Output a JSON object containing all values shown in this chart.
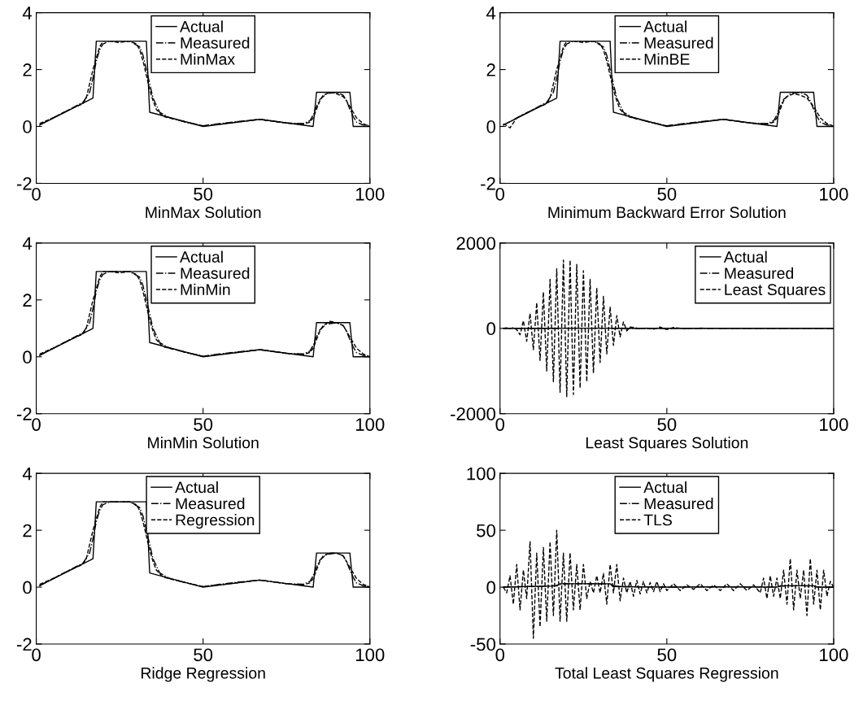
{
  "chart_data": [
    {
      "type": "line",
      "xlabel": "MinMax Solution",
      "xlim": [
        0,
        100
      ],
      "xticks": [
        0,
        50,
        100
      ],
      "ylim": [
        -2,
        4
      ],
      "yticks": [
        -2,
        0,
        2,
        4
      ],
      "legend": "top",
      "grid": false,
      "series": [
        {
          "name": "Actual",
          "color": "#000000",
          "line_style": "solid",
          "x": [
            1,
            17,
            18,
            33,
            34,
            50,
            67,
            83,
            84,
            94,
            95,
            100
          ],
          "values": [
            0.05,
            1,
            3,
            3,
            0.5,
            0,
            0.25,
            0,
            1.2,
            1.2,
            0,
            0
          ]
        },
        {
          "name": "Measured",
          "color": "#000000",
          "line_style": "dashdot",
          "x": [
            1,
            5,
            10,
            14,
            16,
            17,
            18,
            19,
            20,
            22,
            25,
            28,
            31,
            32,
            33,
            34,
            35,
            37,
            40,
            45,
            50,
            55,
            60,
            67,
            75,
            80,
            82,
            83,
            84,
            85,
            87,
            90,
            92,
            93,
            94,
            95,
            96,
            98,
            100
          ],
          "values": [
            0.05,
            0.3,
            0.6,
            0.85,
            1.2,
            1.7,
            2.3,
            2.7,
            2.9,
            3.0,
            3.0,
            3.0,
            2.8,
            2.5,
            2.0,
            1.5,
            1.0,
            0.5,
            0.3,
            0.15,
            0.02,
            0.1,
            0.17,
            0.25,
            0.12,
            0.1,
            0.2,
            0.4,
            0.7,
            0.95,
            1.15,
            1.2,
            1.1,
            0.9,
            0.6,
            0.35,
            0.15,
            0.05,
            0.03
          ]
        },
        {
          "name": "MinMax",
          "color": "#000000",
          "line_style": "dashed",
          "x": [
            1,
            5,
            10,
            14,
            15,
            16,
            17,
            18,
            19,
            20,
            22,
            25,
            28,
            30,
            31,
            32,
            33,
            34,
            35,
            36,
            38,
            40,
            45,
            50,
            60,
            67,
            75,
            80,
            82,
            83,
            84,
            85,
            86,
            88,
            90,
            92,
            93,
            94,
            95,
            96,
            98,
            100
          ],
          "values": [
            0.1,
            0.3,
            0.6,
            0.8,
            1.0,
            1.5,
            2.0,
            2.4,
            2.8,
            3.0,
            3.0,
            2.95,
            3.0,
            2.9,
            2.7,
            2.3,
            1.8,
            1.3,
            0.9,
            0.6,
            0.35,
            0.3,
            0.15,
            0.02,
            0.15,
            0.25,
            0.12,
            0.08,
            0.15,
            0.3,
            0.6,
            0.9,
            1.1,
            1.2,
            1.15,
            1.05,
            0.9,
            0.7,
            0.5,
            0.3,
            0.1,
            0.0
          ]
        }
      ]
    },
    {
      "type": "line",
      "xlabel": "Minimum Backward Error Solution",
      "xlim": [
        0,
        100
      ],
      "xticks": [
        0,
        50,
        100
      ],
      "ylim": [
        -2,
        4
      ],
      "yticks": [
        -2,
        0,
        2,
        4
      ],
      "legend": "top",
      "grid": false,
      "series": [
        {
          "name": "Actual",
          "color": "#000000",
          "line_style": "solid",
          "x": [
            1,
            17,
            18,
            33,
            34,
            50,
            67,
            83,
            84,
            94,
            95,
            100
          ],
          "values": [
            0.05,
            1,
            3,
            3,
            0.5,
            0,
            0.25,
            0,
            1.2,
            1.2,
            0,
            0
          ]
        },
        {
          "name": "Measured",
          "color": "#000000",
          "line_style": "dashdot",
          "x": [
            1,
            5,
            10,
            14,
            16,
            17,
            18,
            19,
            20,
            22,
            25,
            28,
            31,
            32,
            33,
            34,
            35,
            37,
            40,
            45,
            50,
            55,
            60,
            67,
            75,
            80,
            82,
            83,
            84,
            85,
            87,
            90,
            92,
            93,
            94,
            95,
            96,
            98,
            100
          ],
          "values": [
            0.05,
            0.3,
            0.6,
            0.85,
            1.2,
            1.7,
            2.3,
            2.7,
            2.9,
            3.0,
            3.0,
            3.0,
            2.8,
            2.5,
            2.0,
            1.5,
            1.0,
            0.5,
            0.3,
            0.15,
            0.02,
            0.1,
            0.17,
            0.25,
            0.12,
            0.1,
            0.2,
            0.4,
            0.7,
            0.95,
            1.15,
            1.2,
            1.1,
            0.9,
            0.6,
            0.35,
            0.15,
            0.05,
            0.03
          ]
        },
        {
          "name": "MinBE",
          "color": "#000000",
          "line_style": "dashed",
          "x": [
            1,
            3,
            5,
            10,
            14,
            15,
            16,
            17,
            18,
            19,
            20,
            22,
            25,
            28,
            30,
            31,
            32,
            33,
            34,
            35,
            36,
            38,
            40,
            45,
            50,
            60,
            67,
            75,
            80,
            82,
            83,
            84,
            85,
            86,
            88,
            90,
            92,
            93,
            94,
            95,
            96,
            98,
            100
          ],
          "values": [
            0.1,
            -0.05,
            0.3,
            0.6,
            0.8,
            1.0,
            1.5,
            2.0,
            2.4,
            2.8,
            3.0,
            3.0,
            2.95,
            3.0,
            2.9,
            2.7,
            2.3,
            1.8,
            1.3,
            0.9,
            0.6,
            0.35,
            0.3,
            0.15,
            0.02,
            0.15,
            0.25,
            0.12,
            0.08,
            0.15,
            0.3,
            0.6,
            0.9,
            1.05,
            1.15,
            1.1,
            1.0,
            0.85,
            0.7,
            0.5,
            0.3,
            0.1,
            0.0
          ]
        }
      ]
    },
    {
      "type": "line",
      "xlabel": "MinMin Solution",
      "xlim": [
        0,
        100
      ],
      "xticks": [
        0,
        50,
        100
      ],
      "ylim": [
        -2,
        4
      ],
      "yticks": [
        -2,
        0,
        2,
        4
      ],
      "legend": "top",
      "grid": false,
      "series": [
        {
          "name": "Actual",
          "color": "#000000",
          "line_style": "solid",
          "x": [
            1,
            17,
            18,
            33,
            34,
            50,
            67,
            83,
            84,
            94,
            95,
            100
          ],
          "values": [
            0.05,
            1,
            3,
            3,
            0.5,
            0,
            0.25,
            0,
            1.2,
            1.2,
            0,
            0
          ]
        },
        {
          "name": "Measured",
          "color": "#000000",
          "line_style": "dashdot",
          "x": [
            1,
            5,
            10,
            14,
            16,
            17,
            18,
            19,
            20,
            22,
            25,
            28,
            31,
            32,
            33,
            34,
            35,
            37,
            40,
            45,
            50,
            55,
            60,
            67,
            75,
            80,
            82,
            83,
            84,
            85,
            87,
            90,
            92,
            93,
            94,
            95,
            96,
            98,
            100
          ],
          "values": [
            0.05,
            0.3,
            0.6,
            0.85,
            1.2,
            1.7,
            2.3,
            2.7,
            2.9,
            3.0,
            3.0,
            3.0,
            2.8,
            2.5,
            2.0,
            1.5,
            1.0,
            0.5,
            0.3,
            0.15,
            0.02,
            0.1,
            0.17,
            0.25,
            0.12,
            0.1,
            0.2,
            0.4,
            0.7,
            0.95,
            1.15,
            1.2,
            1.1,
            0.9,
            0.6,
            0.35,
            0.15,
            0.05,
            0.03
          ]
        },
        {
          "name": "MinMin",
          "color": "#000000",
          "line_style": "dashed",
          "x": [
            1,
            5,
            10,
            14,
            15,
            16,
            17,
            18,
            19,
            20,
            22,
            25,
            28,
            30,
            31,
            32,
            33,
            34,
            35,
            36,
            38,
            40,
            45,
            50,
            60,
            67,
            75,
            80,
            82,
            83,
            84,
            85,
            86,
            88,
            90,
            92,
            93,
            94,
            95,
            96,
            98,
            100
          ],
          "values": [
            0.1,
            0.3,
            0.6,
            0.8,
            1.0,
            1.5,
            2.0,
            2.4,
            2.8,
            3.0,
            3.0,
            2.95,
            3.0,
            2.9,
            2.7,
            2.3,
            1.8,
            1.3,
            0.9,
            0.6,
            0.35,
            0.3,
            0.15,
            0.02,
            0.15,
            0.25,
            0.12,
            0.08,
            0.15,
            0.3,
            0.6,
            0.9,
            1.1,
            1.25,
            1.2,
            1.1,
            0.9,
            0.7,
            0.5,
            0.3,
            0.1,
            0.0
          ]
        }
      ]
    },
    {
      "type": "line",
      "xlabel": "Least Squares Solution",
      "xlim": [
        0,
        100
      ],
      "xticks": [
        0,
        50,
        100
      ],
      "ylim": [
        -2000,
        2000
      ],
      "yticks": [
        -2000,
        0,
        2000
      ],
      "legend": "top right",
      "grid": false,
      "series": [
        {
          "name": "Actual",
          "color": "#000000",
          "line_style": "solid",
          "x": [
            1,
            17,
            18,
            33,
            34,
            50,
            67,
            83,
            84,
            94,
            95,
            100
          ],
          "values": [
            0.05,
            1,
            3,
            3,
            0.5,
            0,
            0.25,
            0,
            1.2,
            1.2,
            0,
            0
          ]
        },
        {
          "name": "Measured",
          "color": "#000000",
          "line_style": "dashdot",
          "x": [
            1,
            5,
            10,
            14,
            16,
            17,
            18,
            19,
            20,
            22,
            25,
            28,
            31,
            32,
            33,
            34,
            35,
            37,
            40,
            45,
            50,
            55,
            60,
            67,
            75,
            80,
            82,
            83,
            84,
            85,
            87,
            90,
            92,
            93,
            94,
            95,
            96,
            98,
            100
          ],
          "values": [
            0.05,
            0.3,
            0.6,
            0.85,
            1.2,
            1.7,
            2.3,
            2.7,
            2.9,
            3.0,
            3.0,
            3.0,
            2.8,
            2.5,
            2.0,
            1.5,
            1.0,
            0.5,
            0.3,
            0.15,
            0.02,
            0.1,
            0.17,
            0.25,
            0.12,
            0.1,
            0.2,
            0.4,
            0.7,
            0.95,
            1.15,
            1.2,
            1.1,
            0.9,
            0.6,
            0.35,
            0.15,
            0.05,
            0.03
          ]
        },
        {
          "name": "Least Squares",
          "color": "#000000",
          "line_style": "dashed",
          "x": [
            1,
            2,
            3,
            4,
            5,
            6,
            7,
            8,
            9,
            10,
            11,
            12,
            13,
            14,
            15,
            16,
            17,
            18,
            19,
            20,
            21,
            22,
            23,
            24,
            25,
            26,
            27,
            28,
            29,
            30,
            31,
            32,
            33,
            34,
            35,
            36,
            37,
            38,
            39,
            40,
            42,
            44,
            46,
            48,
            50,
            52,
            55,
            60,
            70,
            80,
            90,
            100
          ],
          "values": [
            0,
            10,
            -10,
            20,
            -30,
            -150,
            180,
            -300,
            350,
            -500,
            600,
            -750,
            850,
            -1000,
            1150,
            -1250,
            1400,
            -1500,
            1600,
            -1600,
            1600,
            -1550,
            1500,
            -1400,
            1350,
            -1250,
            1150,
            -1050,
            950,
            -800,
            750,
            -600,
            500,
            -400,
            300,
            -200,
            150,
            -60,
            30,
            20,
            -10,
            10,
            -20,
            30,
            -30,
            20,
            -10,
            5,
            0,
            0,
            0,
            0
          ]
        }
      ]
    },
    {
      "type": "line",
      "xlabel": "Ridge Regression",
      "xlim": [
        0,
        100
      ],
      "xticks": [
        0,
        50,
        100
      ],
      "ylim": [
        -2,
        4
      ],
      "yticks": [
        -2,
        0,
        2,
        4
      ],
      "legend": "top",
      "grid": false,
      "series": [
        {
          "name": "Actual",
          "color": "#000000",
          "line_style": "solid",
          "x": [
            1,
            17,
            18,
            33,
            34,
            50,
            67,
            83,
            84,
            94,
            95,
            100
          ],
          "values": [
            0.05,
            1,
            3,
            3,
            0.5,
            0,
            0.25,
            0,
            1.2,
            1.2,
            0,
            0
          ]
        },
        {
          "name": "Measured",
          "color": "#000000",
          "line_style": "dashdot",
          "x": [
            1,
            5,
            10,
            14,
            16,
            17,
            18,
            19,
            20,
            22,
            25,
            28,
            31,
            32,
            33,
            34,
            35,
            37,
            40,
            45,
            50,
            55,
            60,
            67,
            75,
            80,
            82,
            83,
            84,
            85,
            87,
            90,
            92,
            93,
            94,
            95,
            96,
            98,
            100
          ],
          "values": [
            0.05,
            0.3,
            0.6,
            0.85,
            1.2,
            1.7,
            2.3,
            2.7,
            2.9,
            3.0,
            3.0,
            3.0,
            2.8,
            2.5,
            2.0,
            1.5,
            1.0,
            0.5,
            0.3,
            0.15,
            0.02,
            0.1,
            0.17,
            0.25,
            0.12,
            0.1,
            0.2,
            0.4,
            0.7,
            0.95,
            1.15,
            1.2,
            1.1,
            0.9,
            0.6,
            0.35,
            0.15,
            0.05,
            0.03
          ]
        },
        {
          "name": "Regression",
          "color": "#000000",
          "line_style": "dashed",
          "x": [
            1,
            5,
            10,
            14,
            15,
            16,
            17,
            18,
            19,
            20,
            22,
            25,
            28,
            30,
            31,
            32,
            33,
            34,
            35,
            36,
            38,
            40,
            45,
            50,
            60,
            67,
            75,
            80,
            82,
            83,
            84,
            85,
            86,
            88,
            90,
            92,
            93,
            94,
            95,
            96,
            98,
            100
          ],
          "values": [
            0.1,
            0.3,
            0.6,
            0.8,
            1.0,
            1.5,
            2.0,
            2.4,
            2.8,
            3.0,
            3.0,
            3.0,
            3.0,
            2.9,
            2.7,
            2.3,
            1.8,
            1.3,
            0.9,
            0.6,
            0.35,
            0.3,
            0.15,
            0.02,
            0.15,
            0.25,
            0.12,
            0.08,
            0.15,
            0.3,
            0.6,
            0.9,
            1.1,
            1.2,
            1.2,
            1.1,
            0.9,
            0.7,
            0.5,
            0.3,
            0.1,
            0.0
          ]
        }
      ]
    },
    {
      "type": "line",
      "xlabel": "Total Least Squares Regression",
      "xlim": [
        0,
        100
      ],
      "xticks": [
        0,
        50,
        100
      ],
      "ylim": [
        -50,
        100
      ],
      "yticks": [
        -50,
        0,
        50,
        100
      ],
      "legend": "top",
      "grid": false,
      "series": [
        {
          "name": "Actual",
          "color": "#000000",
          "line_style": "solid",
          "x": [
            1,
            17,
            18,
            33,
            34,
            50,
            67,
            83,
            84,
            94,
            95,
            100
          ],
          "values": [
            0.05,
            1,
            3,
            3,
            0.5,
            0,
            0.25,
            0,
            1.2,
            1.2,
            0,
            0
          ]
        },
        {
          "name": "Measured",
          "color": "#000000",
          "line_style": "dashdot",
          "x": [
            1,
            5,
            10,
            14,
            16,
            17,
            18,
            19,
            20,
            22,
            25,
            28,
            31,
            32,
            33,
            34,
            35,
            37,
            40,
            45,
            50,
            55,
            60,
            67,
            75,
            80,
            82,
            83,
            84,
            85,
            87,
            90,
            92,
            93,
            94,
            95,
            96,
            98,
            100
          ],
          "values": [
            0.05,
            0.3,
            0.6,
            0.85,
            1.2,
            1.7,
            2.3,
            2.7,
            2.9,
            3.0,
            3.0,
            3.0,
            2.8,
            2.5,
            2.0,
            1.5,
            1.0,
            0.5,
            0.3,
            0.15,
            0.02,
            0.1,
            0.17,
            0.25,
            0.12,
            0.1,
            0.2,
            0.4,
            0.7,
            0.95,
            1.15,
            1.2,
            1.1,
            0.9,
            0.6,
            0.35,
            0.15,
            0.05,
            0.03
          ]
        },
        {
          "name": "TLS",
          "color": "#000000",
          "line_style": "dashed",
          "x": [
            1,
            2,
            3,
            4,
            5,
            6,
            7,
            8,
            9,
            10,
            11,
            12,
            13,
            14,
            15,
            16,
            17,
            18,
            19,
            20,
            21,
            22,
            23,
            24,
            25,
            26,
            27,
            28,
            29,
            30,
            31,
            32,
            33,
            34,
            35,
            36,
            37,
            38,
            39,
            40,
            41,
            42,
            43,
            44,
            45,
            46,
            47,
            48,
            49,
            50,
            52,
            54,
            56,
            58,
            60,
            62,
            64,
            66,
            68,
            70,
            72,
            74,
            76,
            78,
            79,
            80,
            81,
            82,
            83,
            84,
            85,
            86,
            87,
            88,
            89,
            90,
            91,
            92,
            93,
            94,
            95,
            96,
            97,
            98,
            99,
            100
          ],
          "values": [
            0,
            -5,
            10,
            -15,
            20,
            -20,
            15,
            -10,
            40,
            -45,
            30,
            -35,
            35,
            -30,
            40,
            -25,
            50,
            -30,
            30,
            -30,
            30,
            -20,
            20,
            -20,
            20,
            -10,
            5,
            -5,
            10,
            -5,
            12,
            -15,
            20,
            -5,
            20,
            -12,
            8,
            -5,
            5,
            -8,
            6,
            -6,
            5,
            -5,
            4,
            -4,
            5,
            -4,
            3,
            -3,
            3,
            -3,
            2,
            -2,
            3,
            -3,
            2,
            -3,
            3,
            -3,
            3,
            -3,
            2,
            -5,
            8,
            -10,
            10,
            -8,
            8,
            -10,
            15,
            -15,
            25,
            -20,
            15,
            -10,
            15,
            -25,
            25,
            -15,
            15,
            -20,
            15,
            -8,
            5,
            0
          ]
        }
      ]
    }
  ]
}
